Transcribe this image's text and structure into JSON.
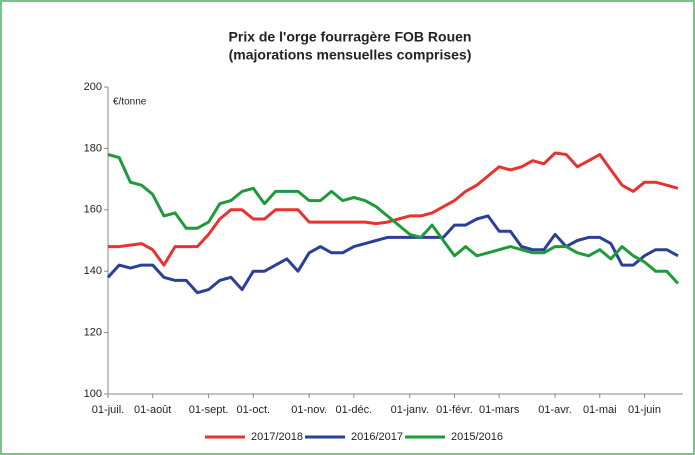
{
  "chart_data": {
    "type": "line",
    "title": "Prix de l'orge fourragère FOB Rouen",
    "subtitle": "(majorations mensuelles comprises)",
    "y_label": "€/tonne",
    "categories": [
      "01-juil.",
      null,
      null,
      null,
      "01-août",
      null,
      null,
      null,
      null,
      "01-sept.",
      null,
      null,
      null,
      "01-oct.",
      null,
      null,
      null,
      null,
      "01-nov.",
      null,
      null,
      null,
      "01-déc.",
      null,
      null,
      null,
      null,
      "01-janv.",
      null,
      null,
      null,
      "01-févr.",
      null,
      null,
      null,
      "01-mars",
      null,
      null,
      null,
      null,
      "01-avr.",
      null,
      null,
      null,
      "01-mai",
      null,
      null,
      null,
      "01-juin",
      null,
      null,
      null
    ],
    "series": [
      {
        "name": "2017/2018",
        "color": "#e8322d",
        "values": [
          148,
          148,
          148.5,
          149,
          147,
          142,
          148,
          148,
          148,
          152,
          157,
          160,
          160,
          157,
          157,
          160,
          160,
          160,
          156,
          156,
          156,
          156,
          156,
          156,
          155.5,
          156,
          157,
          158,
          158,
          159,
          161,
          163,
          166,
          168,
          171,
          174,
          173,
          174,
          176,
          175,
          178.5,
          178,
          174,
          176,
          178,
          173,
          168,
          166,
          169,
          169,
          168,
          167
        ]
      },
      {
        "name": "2016/2017",
        "color": "#2b3f99",
        "values": [
          138,
          142,
          141,
          142,
          142,
          138,
          137,
          137,
          133,
          134,
          137,
          138,
          134,
          140,
          140,
          142,
          144,
          140,
          146,
          148,
          146,
          146,
          148,
          149,
          150,
          151,
          151,
          151,
          151,
          151,
          151,
          155,
          155,
          157,
          158,
          153,
          153,
          148,
          147,
          147,
          152,
          148,
          150,
          151,
          151,
          149,
          142,
          142,
          145,
          147,
          147,
          145
        ]
      },
      {
        "name": "2015/2016",
        "color": "#1e9a3a",
        "values": [
          178,
          177,
          169,
          168,
          165,
          158,
          159,
          154,
          154,
          156,
          162,
          163,
          166,
          167,
          162,
          166,
          166,
          166,
          163,
          163,
          166,
          163,
          164,
          163,
          161,
          158,
          155,
          152,
          151,
          155,
          150,
          145,
          148,
          145,
          146,
          147,
          148,
          147,
          146,
          146,
          148,
          148,
          146,
          145,
          147,
          144,
          148,
          145,
          143,
          140,
          140,
          136
        ]
      }
    ],
    "ylim": [
      100,
      200
    ],
    "yticks": [
      100,
      120,
      140,
      160,
      180,
      200
    ],
    "grid": false,
    "legend": "bottom"
  }
}
